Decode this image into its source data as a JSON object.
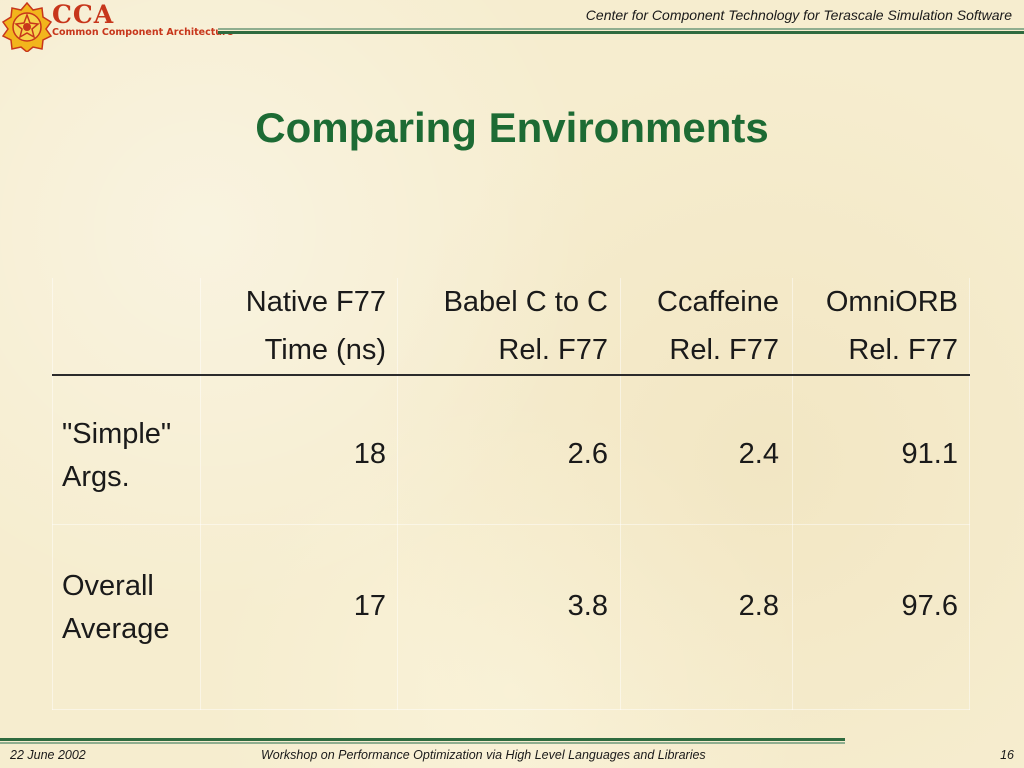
{
  "header": {
    "logo_text": "CCA",
    "logo_subtitle": "Common Component Architecture",
    "tagline": "Center for Component Technology for Terascale Simulation Software"
  },
  "title": "Comparing Environments",
  "table": {
    "columns": [
      {
        "line1": "Native F77",
        "line2": "Time (ns)"
      },
      {
        "line1": "Babel C to C",
        "line2": "Rel. F77"
      },
      {
        "line1": "Ccaffeine",
        "line2": "Rel. F77"
      },
      {
        "line1": "OmniORB",
        "line2": "Rel. F77"
      }
    ],
    "rows": [
      {
        "label_line1": "\"Simple\"",
        "label_line2": "Args.",
        "values": [
          "18",
          "2.6",
          "2.4",
          "91.1"
        ]
      },
      {
        "label_line1": "Overall",
        "label_line2": "Average",
        "values": [
          "17",
          "3.8",
          "2.8",
          "97.6"
        ]
      }
    ]
  },
  "footer": {
    "date": "22 June 2002",
    "event": "Workshop on Performance Optimization via High Level Languages and Libraries",
    "page": "16"
  }
}
